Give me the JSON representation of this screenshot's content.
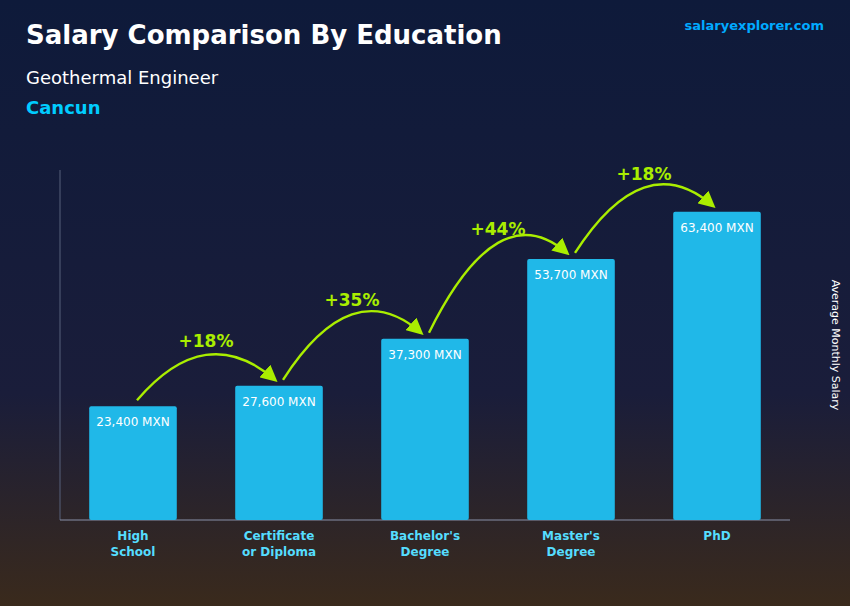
{
  "chart_data": {
    "type": "bar",
    "title": "Salary Comparison By Education",
    "subtitle": [
      "Geothermal Engineer",
      "Cancun"
    ],
    "source": "salaryexplorer.com",
    "ylabel": "Average Monthly Salary",
    "categories": [
      "High\nSchool",
      "Certificate\nor Diploma",
      "Bachelor's\nDegree",
      "Master's\nDegree",
      "PhD"
    ],
    "values": [
      23400,
      27600,
      37300,
      53700,
      63400
    ],
    "value_labels": [
      "23,400 MXN",
      "27,600 MXN",
      "37,300 MXN",
      "53,700 MXN",
      "63,400 MXN"
    ],
    "data_labels": true,
    "annotations": [
      "+18%",
      "+35%",
      "+44%",
      "+18%"
    ],
    "color": "#20b8e8",
    "ylim": [
      0,
      72000
    ],
    "tick_labels": "x",
    "grid": false
  }
}
